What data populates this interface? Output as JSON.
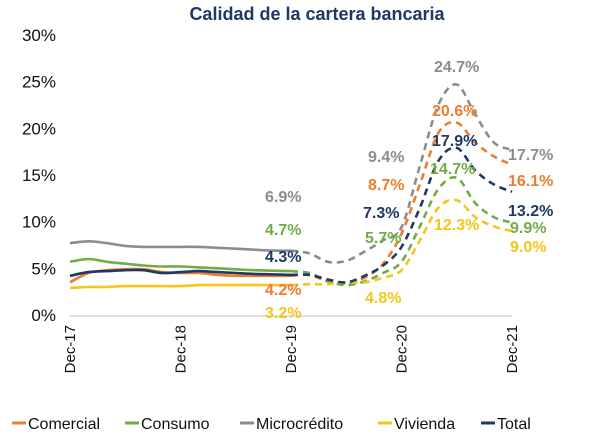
{
  "chart_data": {
    "type": "line",
    "title": "Calidad de la cartera bancaria",
    "xlabel": "",
    "ylabel": "",
    "ylim": [
      0,
      30
    ],
    "yticks": [
      "0%",
      "5%",
      "10%",
      "15%",
      "20%",
      "25%",
      "30%"
    ],
    "ytick_values": [
      0,
      5,
      10,
      15,
      20,
      25,
      30
    ],
    "xticks": [
      "Dec-17",
      "Dec-18",
      "Dec-19",
      "Dec-20",
      "Dec-21"
    ],
    "x": [
      "Dec-17",
      "Feb-18",
      "Apr-18",
      "Jun-18",
      "Aug-18",
      "Oct-18",
      "Dec-18",
      "Feb-19",
      "Apr-19",
      "Jun-19",
      "Aug-19",
      "Oct-19",
      "Dec-19",
      "Feb-20",
      "Apr-20",
      "Jun-20",
      "Aug-20",
      "Oct-20",
      "Dec-20",
      "Feb-21",
      "Apr-21",
      "Jun-21",
      "Aug-21",
      "Oct-21",
      "Dec-21"
    ],
    "grid": false,
    "legend_position": "bottom",
    "series": [
      {
        "name": "Comercial",
        "color": "#ED7D31",
        "solid_until": 12,
        "values": [
          3.5,
          4.5,
          4.8,
          4.9,
          4.9,
          4.6,
          4.5,
          4.5,
          4.3,
          4.2,
          4.2,
          4.2,
          4.2,
          4.3,
          3.6,
          3.4,
          4.0,
          5.5,
          8.7,
          14.0,
          19.5,
          20.6,
          18.5,
          17.0,
          16.1
        ]
      },
      {
        "name": "Consumo",
        "color": "#70AD47",
        "solid_until": 12,
        "values": [
          5.7,
          6.0,
          5.7,
          5.5,
          5.3,
          5.2,
          5.2,
          5.1,
          5.0,
          4.9,
          4.8,
          4.75,
          4.7,
          4.5,
          3.6,
          3.2,
          3.6,
          4.5,
          5.7,
          9.5,
          13.5,
          14.7,
          12.0,
          10.5,
          9.9
        ]
      },
      {
        "name": "Microcrédito",
        "color": "#8C8C8C",
        "solid_until": 12,
        "values": [
          7.7,
          7.9,
          7.7,
          7.4,
          7.3,
          7.3,
          7.3,
          7.3,
          7.2,
          7.1,
          7.0,
          6.9,
          6.9,
          6.6,
          5.7,
          5.8,
          6.8,
          8.0,
          9.4,
          16.0,
          22.5,
          24.7,
          21.5,
          18.5,
          17.7
        ]
      },
      {
        "name": "Vivienda",
        "color": "#F5C518",
        "solid_until": 12,
        "values": [
          2.9,
          3.0,
          3.0,
          3.1,
          3.1,
          3.1,
          3.1,
          3.2,
          3.2,
          3.2,
          3.2,
          3.2,
          3.2,
          3.3,
          3.3,
          3.5,
          3.5,
          4.0,
          4.8,
          8.0,
          11.5,
          12.3,
          10.5,
          9.5,
          9.0
        ]
      },
      {
        "name": "Total",
        "color": "#1F3864",
        "solid_until": 12,
        "values": [
          4.2,
          4.6,
          4.7,
          4.8,
          4.8,
          4.5,
          4.6,
          4.7,
          4.6,
          4.5,
          4.4,
          4.35,
          4.3,
          4.3,
          3.8,
          3.5,
          4.2,
          5.3,
          7.3,
          11.5,
          16.5,
          17.9,
          15.5,
          14.0,
          13.2
        ]
      }
    ],
    "data_labels": [
      {
        "series": "Microcrédito",
        "x": "Dec-19",
        "text": "6.9%"
      },
      {
        "series": "Consumo",
        "x": "Dec-19",
        "text": "4.7%"
      },
      {
        "series": "Total",
        "x": "Dec-19",
        "text": "4.3%"
      },
      {
        "series": "Comercial",
        "x": "Dec-19",
        "text": "4.2%"
      },
      {
        "series": "Vivienda",
        "x": "Dec-19",
        "text": "3.2%"
      },
      {
        "series": "Microcrédito",
        "x": "Dec-20",
        "text": "9.4%"
      },
      {
        "series": "Comercial",
        "x": "Dec-20",
        "text": "8.7%"
      },
      {
        "series": "Total",
        "x": "Dec-20",
        "text": "7.3%"
      },
      {
        "series": "Consumo",
        "x": "Dec-20",
        "text": "5.7%"
      },
      {
        "series": "Vivienda",
        "x": "Dec-20",
        "text": "4.8%"
      },
      {
        "series": "Microcrédito",
        "x": "Jun-21",
        "text": "24.7%"
      },
      {
        "series": "Comercial",
        "x": "Jun-21",
        "text": "20.6%"
      },
      {
        "series": "Total",
        "x": "Jun-21",
        "text": "17.9%"
      },
      {
        "series": "Consumo",
        "x": "Jun-21",
        "text": "14.7%"
      },
      {
        "series": "Vivienda",
        "x": "Jun-21",
        "text": "12.3%"
      },
      {
        "series": "Microcrédito",
        "x": "Dec-21",
        "text": "17.7%"
      },
      {
        "series": "Comercial",
        "x": "Dec-21",
        "text": "16.1%"
      },
      {
        "series": "Total",
        "x": "Dec-21",
        "text": "13.2%"
      },
      {
        "series": "Consumo",
        "x": "Dec-21",
        "text": "9.9%"
      },
      {
        "series": "Vivienda",
        "x": "Dec-21",
        "text": "9.0%"
      }
    ]
  }
}
